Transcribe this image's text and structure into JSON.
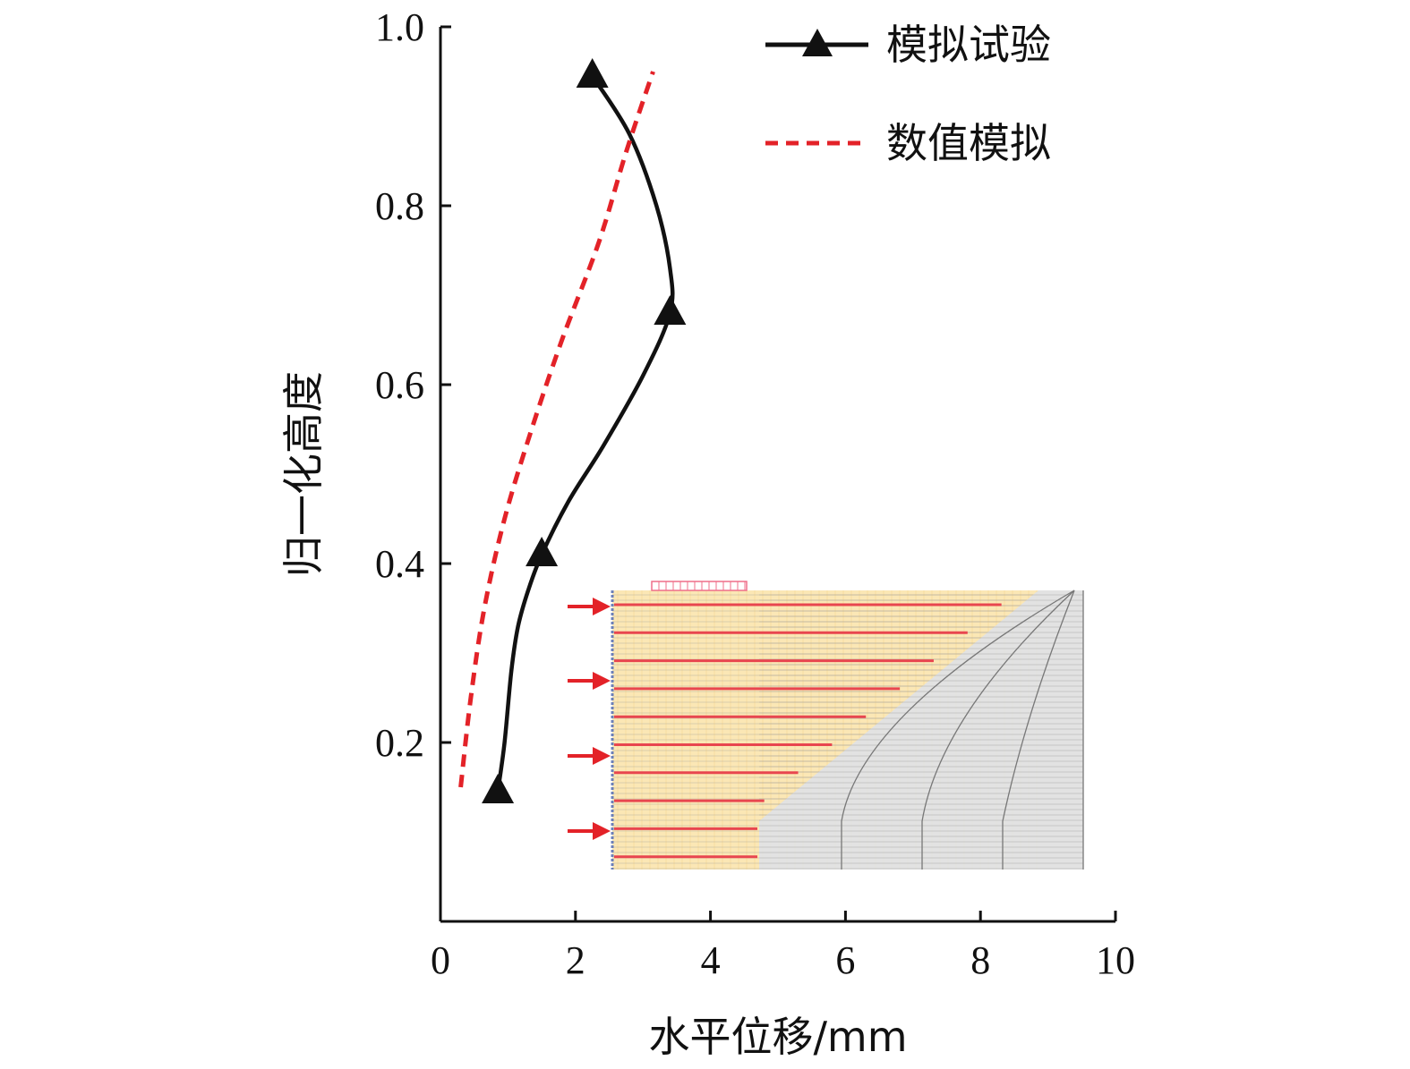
{
  "chart_data": {
    "type": "line",
    "title": "",
    "xlabel": "水平位移/mm",
    "ylabel": "归一化高度",
    "xlim": [
      0,
      10
    ],
    "ylim": [
      0,
      1.0
    ],
    "xticks": [
      0,
      2,
      4,
      6,
      8,
      10
    ],
    "xtick_labels": [
      "0",
      "2",
      "4",
      "6",
      "8",
      "10"
    ],
    "yticks": [
      0.2,
      0.4,
      0.6,
      0.8,
      1.0
    ],
    "ytick_labels": [
      "0.2",
      "0.4",
      "0.6",
      "0.8",
      "1.0"
    ],
    "grid": false,
    "legend_position": "top-right",
    "series": [
      {
        "name": "模拟试验",
        "style": "solid",
        "marker": "triangle",
        "color": "#111111",
        "markers": [
          [
            0.85,
            0.145
          ],
          [
            1.5,
            0.41
          ],
          [
            3.4,
            0.68
          ],
          [
            2.25,
            0.945
          ]
        ],
        "x": [
          0.85,
          0.95,
          1.05,
          1.15,
          1.3,
          1.5,
          1.9,
          2.4,
          3.0,
          3.4,
          3.4,
          3.2,
          2.8,
          2.25
        ],
        "y": [
          0.145,
          0.2,
          0.28,
          0.33,
          0.37,
          0.41,
          0.47,
          0.53,
          0.61,
          0.68,
          0.73,
          0.8,
          0.88,
          0.945
        ]
      },
      {
        "name": "数值模拟",
        "style": "dashed",
        "color": "#e32228",
        "x": [
          0.3,
          0.45,
          0.65,
          0.95,
          1.35,
          1.8,
          2.35,
          2.75,
          3.15
        ],
        "y": [
          0.15,
          0.25,
          0.35,
          0.45,
          0.55,
          0.65,
          0.76,
          0.86,
          0.95
        ]
      }
    ]
  },
  "inset": {
    "description_hidden": "",
    "colors": {
      "reinforced_zone": "#fbe7b5",
      "reinforcement": "#e8464f",
      "load_plate": "#ef6f8a",
      "arrow": "#e32228",
      "backfill": "#e2e2e2",
      "mesh_line": "#9a9a9a"
    },
    "reinforcement_layers": 10,
    "arrow_count": 4
  }
}
